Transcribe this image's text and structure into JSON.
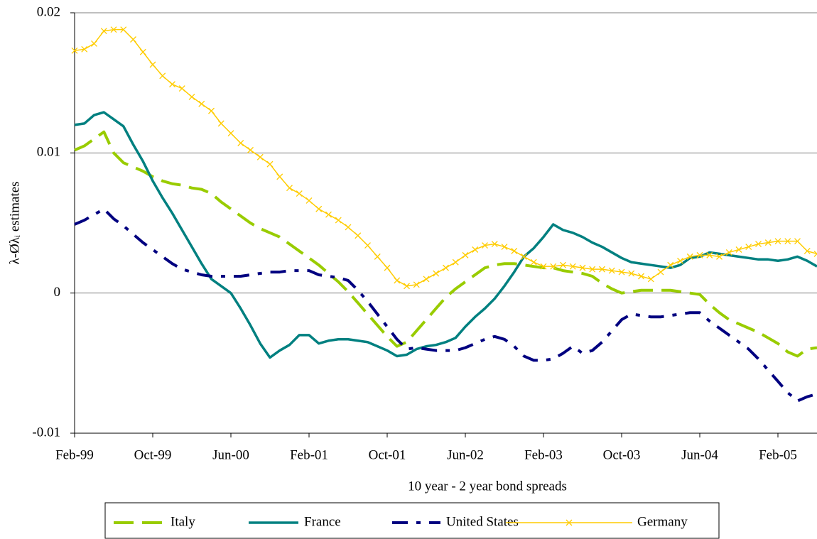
{
  "chart_data": {
    "type": "line",
    "x_label": "10 year - 2 year bond spreads",
    "y_label": "λ-Øλᵢ estimates",
    "categories": [
      "Feb-99",
      null,
      null,
      null,
      null,
      null,
      null,
      null,
      "Oct-99",
      null,
      null,
      null,
      null,
      null,
      null,
      null,
      "Jun-00",
      null,
      null,
      null,
      null,
      null,
      null,
      null,
      "Feb-01",
      null,
      null,
      null,
      null,
      null,
      null,
      null,
      "Oct-01",
      null,
      null,
      null,
      null,
      null,
      null,
      null,
      "Jun-02",
      null,
      null,
      null,
      null,
      null,
      null,
      null,
      "Feb-03",
      null,
      null,
      null,
      null,
      null,
      null,
      null,
      "Oct-03",
      null,
      null,
      null,
      null,
      null,
      null,
      null,
      "Jun-04",
      null,
      null,
      null,
      null,
      null,
      null,
      null,
      "Feb-05",
      null,
      null,
      null,
      null
    ],
    "ylim": [
      -0.01,
      0.02
    ],
    "yticks": [
      -0.01,
      0,
      0.01,
      0.02
    ],
    "grid": true,
    "series": [
      {
        "name": "Italy",
        "color": "#99cc00",
        "style": "dashed",
        "values": [
          0.0102,
          0.0105,
          0.011,
          0.0115,
          0.01,
          0.0093,
          0.009,
          0.0087,
          0.0083,
          0.008,
          0.0078,
          0.0077,
          0.0075,
          0.0074,
          0.0071,
          0.0065,
          0.006,
          0.0055,
          0.005,
          0.0046,
          0.0043,
          0.004,
          0.0035,
          0.003,
          0.0025,
          0.002,
          0.0014,
          0.0008,
          0.0001,
          -0.0007,
          -0.0015,
          -0.0023,
          -0.0031,
          -0.0038,
          -0.0035,
          -0.0027,
          -0.0019,
          -0.0011,
          -0.0003,
          0.0003,
          0.0008,
          0.0013,
          0.0018,
          0.002,
          0.0021,
          0.0021,
          0.002,
          0.0019,
          0.0018,
          0.0018,
          0.0016,
          0.0015,
          0.0014,
          0.0012,
          0.0007,
          0.0003,
          0.0,
          0.0001,
          0.0002,
          0.0002,
          0.0002,
          0.0002,
          0.0001,
          0.0,
          -0.0001,
          -0.0008,
          -0.0014,
          -0.0019,
          -0.0022,
          -0.0025,
          -0.0028,
          -0.0032,
          -0.0036,
          -0.0042,
          -0.0045,
          -0.004,
          -0.0039
        ]
      },
      {
        "name": "France",
        "color": "#008080",
        "style": "solid",
        "values": [
          0.012,
          0.0121,
          0.0127,
          0.0129,
          0.0124,
          0.0119,
          0.0106,
          0.0094,
          0.008,
          0.0068,
          0.0057,
          0.0045,
          0.0033,
          0.0021,
          0.001,
          0.0005,
          0.0,
          -0.0011,
          -0.0023,
          -0.0036,
          -0.0046,
          -0.0041,
          -0.0037,
          -0.003,
          -0.003,
          -0.0036,
          -0.0034,
          -0.0033,
          -0.0033,
          -0.0034,
          -0.0035,
          -0.0038,
          -0.0041,
          -0.0045,
          -0.0044,
          -0.004,
          -0.0038,
          -0.0037,
          -0.0035,
          -0.0032,
          -0.0024,
          -0.0017,
          -0.0011,
          -0.0004,
          0.0005,
          0.0015,
          0.0026,
          0.0032,
          0.004,
          0.0049,
          0.0045,
          0.0043,
          0.004,
          0.0036,
          0.0033,
          0.0029,
          0.0025,
          0.0022,
          0.0021,
          0.002,
          0.0019,
          0.0018,
          0.002,
          0.0025,
          0.0026,
          0.0029,
          0.0028,
          0.0027,
          0.0026,
          0.0025,
          0.0024,
          0.0024,
          0.0023,
          0.0024,
          0.0026,
          0.0023,
          0.0019
        ]
      },
      {
        "name": "United States",
        "color": "#000080",
        "style": "dash-dot",
        "values": [
          0.0049,
          0.0052,
          0.0056,
          0.006,
          0.0053,
          0.0048,
          0.0042,
          0.0036,
          0.0031,
          0.0026,
          0.0021,
          0.0017,
          0.0015,
          0.0013,
          0.0012,
          0.0012,
          0.0012,
          0.0012,
          0.0013,
          0.0014,
          0.0015,
          0.0015,
          0.0016,
          0.0016,
          0.0016,
          0.0013,
          0.0012,
          0.0011,
          0.0009,
          0.0002,
          -0.0006,
          -0.0015,
          -0.0024,
          -0.0033,
          -0.004,
          -0.0039,
          -0.004,
          -0.0041,
          -0.0041,
          -0.0041,
          -0.0039,
          -0.0036,
          -0.0033,
          -0.0031,
          -0.0033,
          -0.0038,
          -0.0045,
          -0.0048,
          -0.0048,
          -0.0047,
          -0.0043,
          -0.0038,
          -0.0043,
          -0.0041,
          -0.0035,
          -0.0027,
          -0.0019,
          -0.0015,
          -0.0016,
          -0.0017,
          -0.0017,
          -0.0016,
          -0.0015,
          -0.0014,
          -0.0014,
          -0.002,
          -0.0025,
          -0.003,
          -0.0035,
          -0.004,
          -0.0047,
          -0.0055,
          -0.0063,
          -0.0071,
          -0.0077,
          -0.0074,
          -0.0072
        ]
      },
      {
        "name": "Germany",
        "color": "#ffcc00",
        "style": "thin",
        "marker": "x",
        "values": [
          0.0173,
          0.0174,
          0.0178,
          0.0187,
          0.0188,
          0.0188,
          0.0181,
          0.0172,
          0.0163,
          0.0155,
          0.0149,
          0.0146,
          0.014,
          0.0135,
          0.013,
          0.0121,
          0.0114,
          0.0107,
          0.0102,
          0.0097,
          0.0092,
          0.0083,
          0.0075,
          0.0071,
          0.0066,
          0.006,
          0.0056,
          0.0052,
          0.0047,
          0.0041,
          0.0034,
          0.0026,
          0.0018,
          0.0009,
          0.0005,
          0.0006,
          0.001,
          0.0014,
          0.0018,
          0.0022,
          0.0027,
          0.0031,
          0.0034,
          0.0035,
          0.0033,
          0.003,
          0.0026,
          0.0022,
          0.0019,
          0.0019,
          0.002,
          0.0019,
          0.0018,
          0.0017,
          0.0017,
          0.0016,
          0.0015,
          0.0014,
          0.0012,
          0.001,
          0.0015,
          0.002,
          0.0023,
          0.0026,
          0.0027,
          0.0027,
          0.0026,
          0.0029,
          0.0031,
          0.0033,
          0.0035,
          0.0036,
          0.0037,
          0.0037,
          0.0037,
          0.003,
          0.0028
        ]
      }
    ]
  }
}
